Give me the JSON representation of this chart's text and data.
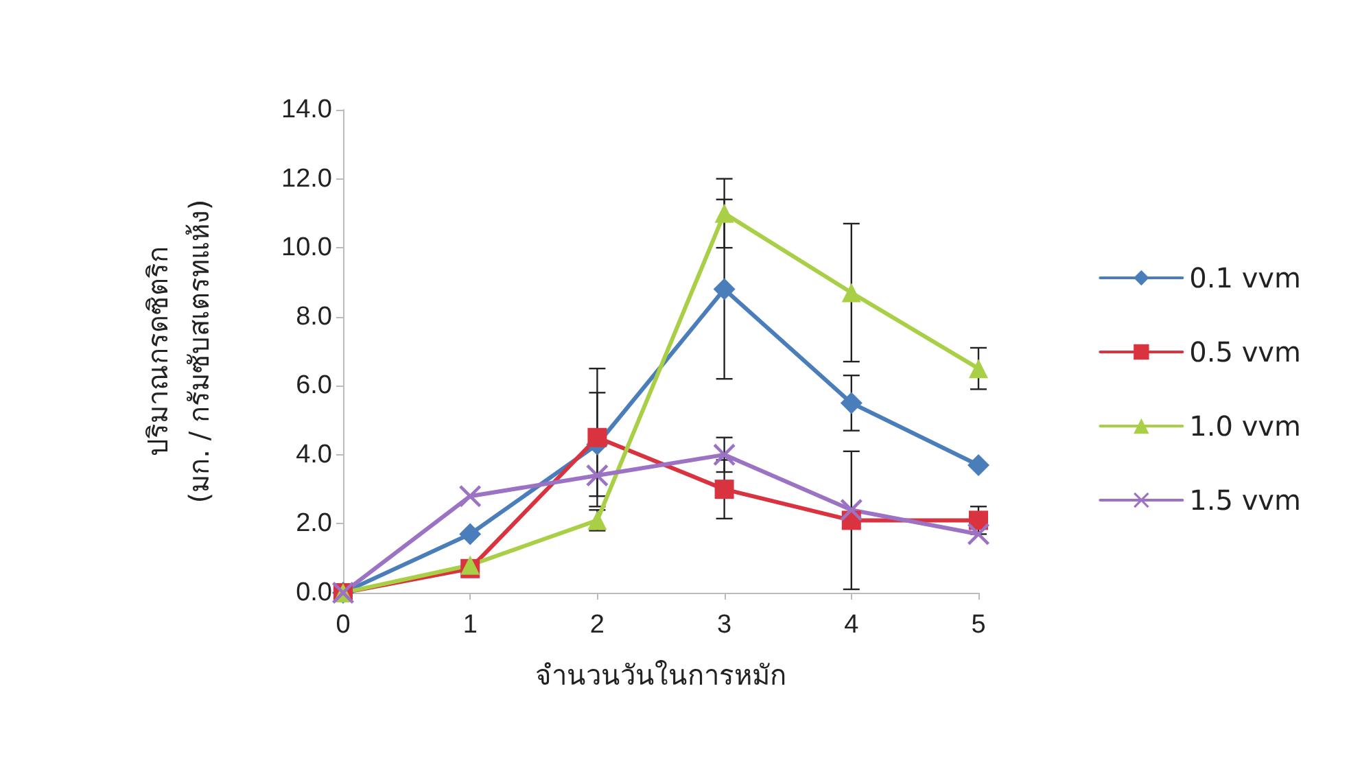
{
  "chart_data": {
    "type": "line",
    "xlabel": "จำนวนวันในการหมัก",
    "ylabel": "ปริมาณกรดซิตริก\n(มก. / กรัมซับสเตรทแห้ง)",
    "categories": [
      "0",
      "1",
      "2",
      "3",
      "4",
      "5"
    ],
    "ylim": [
      0,
      14
    ],
    "yticks": [
      {
        "value": 0,
        "label": "0.0"
      },
      {
        "value": 2,
        "label": "2.0"
      },
      {
        "value": 4,
        "label": "4.0"
      },
      {
        "value": 6,
        "label": "6.0"
      },
      {
        "value": 8,
        "label": "8.0"
      },
      {
        "value": 10,
        "label": "10.0"
      },
      {
        "value": 12,
        "label": "12.0"
      },
      {
        "value": 14,
        "label": "14.0"
      }
    ],
    "grid": false,
    "legend": "right",
    "line_style": "solid",
    "series": [
      {
        "name": "0.1 vvm",
        "color": "#4a7ebb",
        "marker": "diamond",
        "values": [
          0,
          1.7,
          4.3,
          8.8,
          5.5,
          3.7
        ],
        "errors": [
          null,
          null,
          1.5,
          2.6,
          0.8,
          null
        ]
      },
      {
        "name": "0.5 vvm",
        "color": "#d8333f",
        "marker": "square",
        "values": [
          0,
          0.7,
          4.5,
          3.0,
          2.1,
          2.1
        ],
        "errors": [
          null,
          null,
          2.0,
          0.85,
          2.0,
          0.4
        ]
      },
      {
        "name": "1.0 vvm",
        "color": "#a9cf46",
        "marker": "triangle",
        "values": [
          0,
          0.8,
          2.1,
          11.0,
          8.7,
          6.5
        ],
        "errors": [
          null,
          null,
          0.3,
          1.0,
          2.0,
          0.6
        ]
      },
      {
        "name": "1.5 vvm",
        "color": "#9b72c4",
        "marker": "cross",
        "values": [
          0,
          2.8,
          3.4,
          4.0,
          2.4,
          1.7
        ],
        "errors": [
          null,
          null,
          null,
          0.5,
          null,
          null
        ]
      }
    ]
  }
}
